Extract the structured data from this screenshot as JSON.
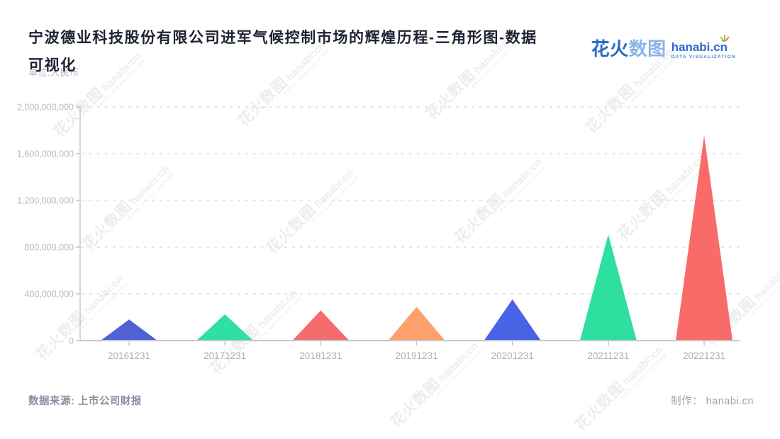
{
  "page": {
    "title_line1": "宁波德业科技股份有限公司进军气候控制市场的辉煌历程-三角形图-数据",
    "title_line2": "可视化",
    "unit_label": "单位:人民币",
    "source": "数据来源: 上市公司财报",
    "credit": "制作： hanabi.cn"
  },
  "logo": {
    "brand_bold": "花火",
    "brand_light": "数图",
    "domain": "hanabi.cn",
    "tagline": "DATA VISUALIZATION"
  },
  "watermark": {
    "brand": "花火数图",
    "domain": "hanabi:cn",
    "tagline": "DATA VISUALIZATION"
  },
  "chart_data": {
    "type": "bar",
    "shape": "triangle",
    "title": "宁波德业科技股份有限公司进军气候控制市场的辉煌历程-三角形图-数据可视化",
    "unit_label": "单位:人民币",
    "categories": [
      "20161231",
      "20171231",
      "20181231",
      "20191231",
      "20201231",
      "20211231",
      "20221231"
    ],
    "values": [
      180000000,
      225000000,
      258000000,
      289000000,
      353000000,
      908000000,
      1755000000
    ],
    "colors": [
      "#4e62d2",
      "#30dfa2",
      "#f56c6c",
      "#fca06e",
      "#4a63e4",
      "#2edfa0",
      "#f96b69"
    ],
    "ylim": [
      0,
      2000000000
    ],
    "ytick_step": 400000000,
    "ytick_labels": [
      "0",
      "400,000,000",
      "800,000,000",
      "1,200,000,000",
      "1,600,000,000",
      "2,000,000,000"
    ],
    "grid": "horizontal-dashed",
    "legend": "none",
    "axis_color": "#c6c7cb",
    "grid_color": "#e2e3e8",
    "ytick_label_color": "#b6b8c0",
    "xtick_label_color": "#a9afbc"
  }
}
